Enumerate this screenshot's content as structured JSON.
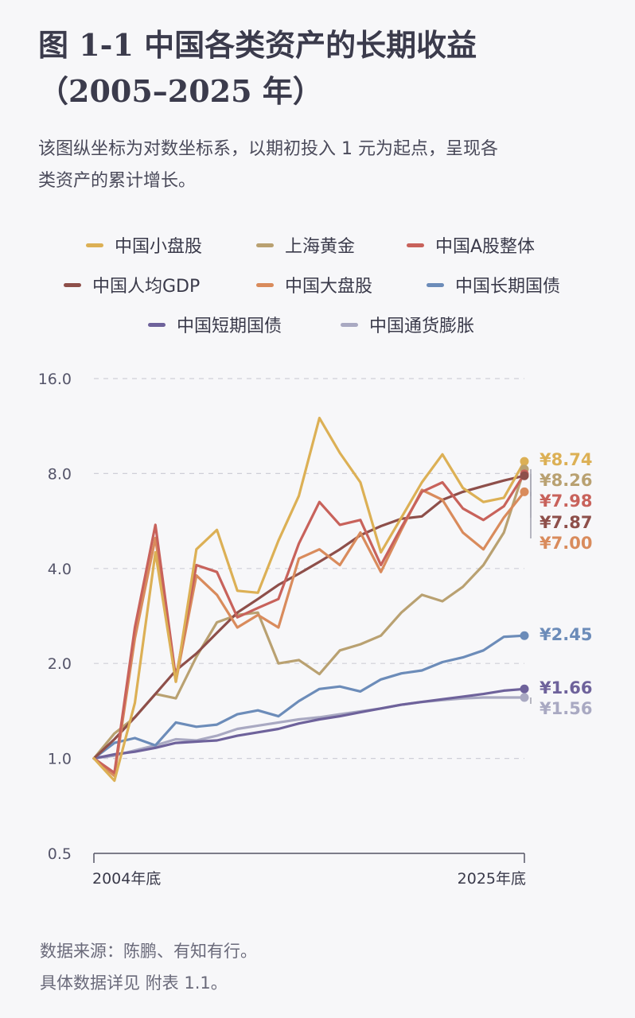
{
  "title_line1": "图 1-1 中国各类资产的长期收益",
  "title_line2": "（2005–2025 年）",
  "subtitle_line1": "该图纵坐标为对数坐标系，以期初投入 1 元为起点，呈现各",
  "subtitle_line2": "类资产的累计增长。",
  "footer_line1": "数据来源：陈鹏、有知有行。",
  "footer_line2": "具体数据详见 附表 1.1。",
  "legend": [
    {
      "label": "中国小盘股",
      "color": "#dcb055"
    },
    {
      "label": "上海黄金",
      "color": "#b9a171"
    },
    {
      "label": "中国A股整体",
      "color": "#c8625b"
    },
    {
      "label": "中国人均GDP",
      "color": "#8e4f4a"
    },
    {
      "label": "中国大盘股",
      "color": "#d98b5c"
    },
    {
      "label": "中国长期国债",
      "color": "#6c8cb9"
    },
    {
      "label": "中国短期国债",
      "color": "#6e629b"
    },
    {
      "label": "中国通货膨胀",
      "color": "#a9a9c2"
    }
  ],
  "chart_data": {
    "type": "line",
    "yscale": "log2",
    "ylim": [
      0.5,
      16.0
    ],
    "yticks": [
      0.5,
      1.0,
      2.0,
      4.0,
      8.0,
      16.0
    ],
    "ytick_labels": [
      "0.5",
      "1.0",
      "2.0",
      "4.0",
      "8.0",
      "16.0"
    ],
    "grid": true,
    "x": [
      2004,
      2005,
      2006,
      2007,
      2008,
      2009,
      2010,
      2011,
      2012,
      2013,
      2014,
      2015,
      2016,
      2017,
      2018,
      2019,
      2020,
      2021,
      2022,
      2023,
      2024,
      2025
    ],
    "xtick_labels": [
      "2004年底",
      "2025年底"
    ],
    "series": [
      {
        "name": "中国小盘股",
        "color": "#dcb055",
        "end_label": "¥8.74",
        "values": [
          1.0,
          0.85,
          1.5,
          4.5,
          1.75,
          4.6,
          5.3,
          3.4,
          3.35,
          4.9,
          6.8,
          12.0,
          9.3,
          7.5,
          4.5,
          5.8,
          7.5,
          9.2,
          7.2,
          6.5,
          6.7,
          8.74
        ]
      },
      {
        "name": "上海黄金",
        "color": "#b9a171",
        "end_label": "¥8.26",
        "values": [
          1.0,
          1.2,
          1.35,
          1.6,
          1.55,
          2.1,
          2.7,
          2.85,
          2.9,
          2.0,
          2.05,
          1.85,
          2.2,
          2.3,
          2.45,
          2.9,
          3.3,
          3.15,
          3.5,
          4.1,
          5.2,
          8.26
        ]
      },
      {
        "name": "中国A股整体",
        "color": "#c8625b",
        "end_label": "¥7.98",
        "values": [
          1.0,
          0.9,
          2.6,
          5.5,
          1.8,
          4.1,
          3.9,
          2.8,
          3.0,
          3.2,
          4.8,
          6.5,
          5.5,
          5.7,
          4.1,
          5.4,
          7.0,
          7.5,
          6.2,
          5.7,
          6.3,
          7.98
        ]
      },
      {
        "name": "中国人均GDP",
        "color": "#8e4f4a",
        "end_label": "¥7.87",
        "values": [
          1.0,
          1.15,
          1.35,
          1.6,
          1.9,
          2.15,
          2.5,
          2.9,
          3.2,
          3.55,
          3.85,
          4.2,
          4.6,
          5.1,
          5.45,
          5.75,
          5.85,
          6.6,
          7.0,
          7.3,
          7.6,
          7.87
        ]
      },
      {
        "name": "中国大盘股",
        "color": "#d98b5c",
        "end_label": "¥7.00",
        "values": [
          1.0,
          0.88,
          2.4,
          5.0,
          1.75,
          3.8,
          3.3,
          2.6,
          2.85,
          2.6,
          4.3,
          4.6,
          4.1,
          5.2,
          3.9,
          5.3,
          7.1,
          6.6,
          5.2,
          4.6,
          5.8,
          7.0
        ]
      },
      {
        "name": "中国长期国债",
        "color": "#6c8cb9",
        "end_label": "¥2.45",
        "values": [
          1.0,
          1.12,
          1.16,
          1.1,
          1.3,
          1.26,
          1.28,
          1.38,
          1.42,
          1.36,
          1.52,
          1.66,
          1.69,
          1.63,
          1.78,
          1.86,
          1.9,
          2.02,
          2.09,
          2.2,
          2.43,
          2.45
        ]
      },
      {
        "name": "中国短期国债",
        "color": "#6e629b",
        "end_label": "¥1.66",
        "values": [
          1.0,
          1.03,
          1.05,
          1.08,
          1.12,
          1.13,
          1.14,
          1.18,
          1.21,
          1.24,
          1.29,
          1.33,
          1.36,
          1.4,
          1.44,
          1.48,
          1.51,
          1.54,
          1.57,
          1.6,
          1.64,
          1.66
        ]
      },
      {
        "name": "中国通货膨胀",
        "color": "#a9a9c2",
        "end_label": "¥1.56",
        "values": [
          1.0,
          1.02,
          1.06,
          1.1,
          1.15,
          1.14,
          1.18,
          1.24,
          1.27,
          1.3,
          1.33,
          1.35,
          1.38,
          1.41,
          1.44,
          1.48,
          1.51,
          1.53,
          1.55,
          1.56,
          1.56,
          1.56
        ]
      }
    ]
  }
}
